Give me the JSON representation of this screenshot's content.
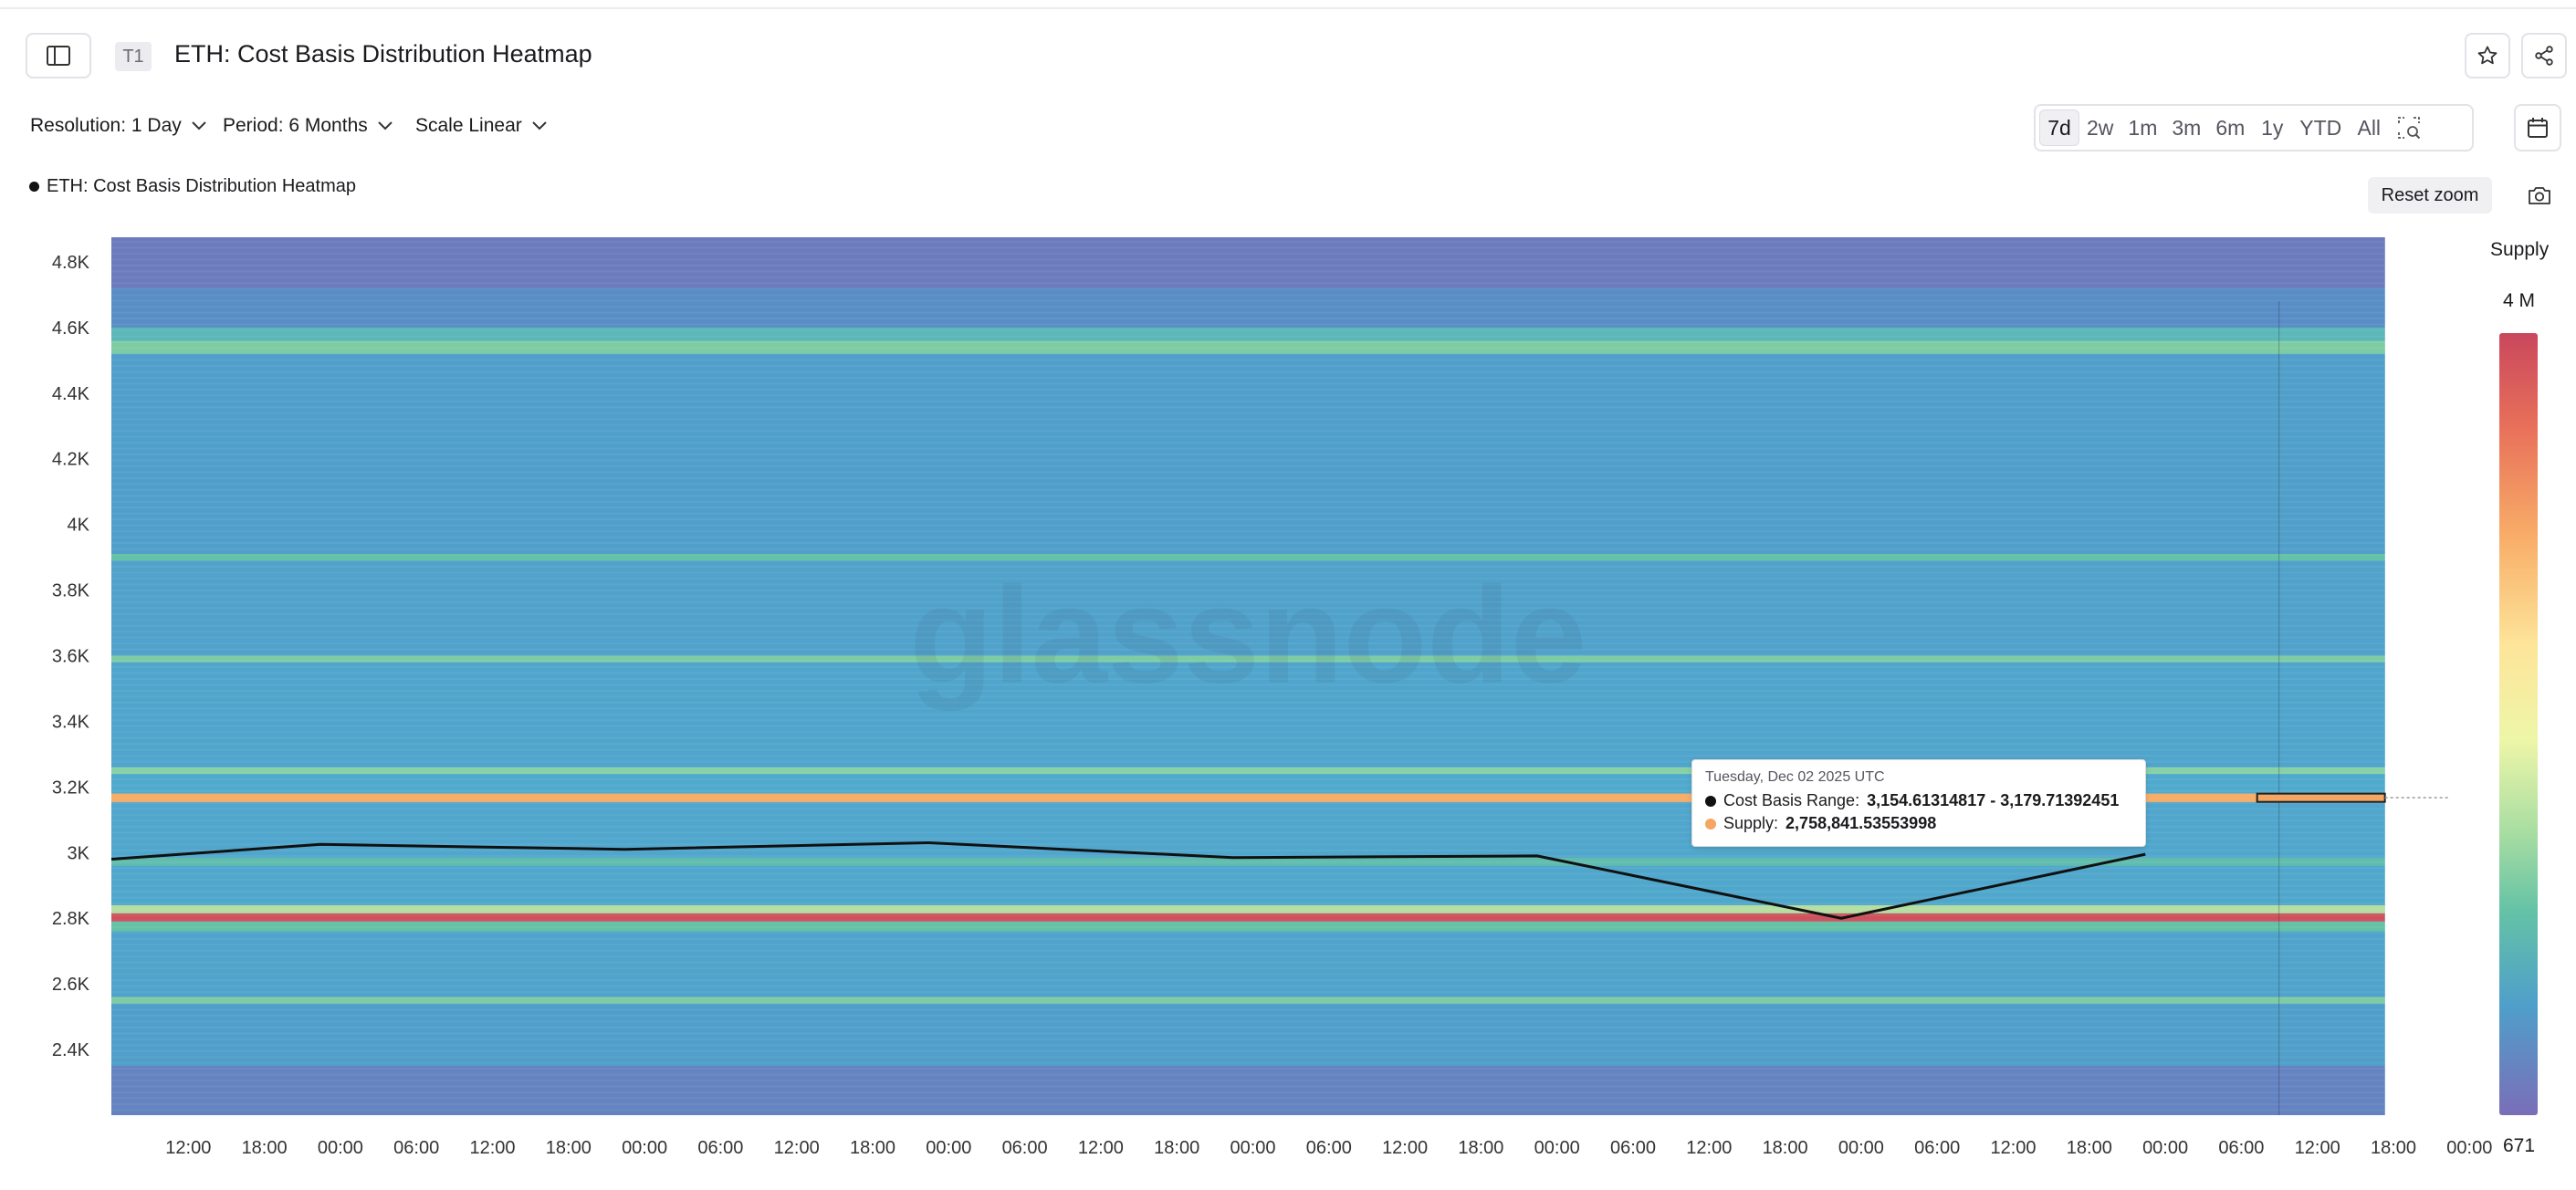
{
  "header": {
    "badge": "T1",
    "title": "ETH: Cost Basis Distribution Heatmap"
  },
  "controls": {
    "resolution": "Resolution: 1 Day",
    "period": "Period: 6 Months",
    "scale": "Scale Linear"
  },
  "timeframes": [
    "7d",
    "2w",
    "1m",
    "3m",
    "6m",
    "1y",
    "YTD",
    "All"
  ],
  "active_timeframe": "7d",
  "legend_label": "ETH: Cost Basis Distribution Heatmap",
  "reset_zoom": "Reset zoom",
  "watermark": "glassnode",
  "colorbar": {
    "title": "Supply",
    "max_label": "4 M",
    "min_label": "671"
  },
  "tooltip": {
    "date": "Tuesday, Dec 02 2025 UTC",
    "range_label": "Cost Basis Range:",
    "range_value": "3,154.61314817 - 3,179.71392451",
    "supply_label": "Supply:",
    "supply_value": "2,758,841.53553998"
  },
  "colors": {
    "price_line": "#111111",
    "highlight": "#f4a662",
    "range_dot": "#111111",
    "supply_dot": "#f4a662"
  },
  "chart_data": {
    "type": "heatmap",
    "title": "ETH: Cost Basis Distribution Heatmap",
    "x_ticks": [
      "12:00",
      "18:00",
      "00:00",
      "06:00",
      "12:00",
      "18:00",
      "00:00",
      "06:00",
      "12:00",
      "18:00",
      "00:00",
      "06:00",
      "12:00",
      "18:00",
      "00:00",
      "06:00",
      "12:00",
      "18:00",
      "00:00",
      "06:00",
      "12:00",
      "18:00",
      "00:00",
      "06:00",
      "12:00",
      "18:00",
      "00:00",
      "06:00",
      "12:00",
      "18:00",
      "00:00"
    ],
    "x_tick_index": [
      1,
      2,
      3,
      4,
      5,
      6,
      7,
      8,
      9,
      10,
      11,
      12,
      13,
      14,
      15,
      16,
      17,
      18,
      19,
      20,
      21,
      22,
      23,
      24,
      25,
      26,
      27,
      28,
      29,
      30,
      31
    ],
    "x_range_ticks": [
      0,
      31.9
    ],
    "heat_end_index": 29.9,
    "y_ticks": [
      2400,
      2600,
      2800,
      3000,
      3200,
      3400,
      3600,
      3800,
      4000,
      4200,
      4400,
      4600,
      4800
    ],
    "y_tick_labels": [
      "2.4K",
      "2.6K",
      "2.8K",
      "3K",
      "3.2K",
      "3.4K",
      "3.6K",
      "3.8K",
      "4K",
      "4.2K",
      "4.4K",
      "4.6K",
      "4.8K"
    ],
    "ylim": [
      2200,
      4875
    ],
    "price_line": {
      "x": [
        0,
        2.75,
        6.75,
        10.75,
        14.75,
        18.75,
        22.75,
        26.75
      ],
      "y": [
        2980,
        3025,
        3010,
        3030,
        2985,
        2990,
        2800,
        2995
      ]
    },
    "bands": [
      {
        "low": 2200,
        "high": 2350,
        "supply": 0.08
      },
      {
        "low": 2350,
        "high": 2540,
        "supply": 0.22
      },
      {
        "low": 2540,
        "high": 2560,
        "supply": 0.5
      },
      {
        "low": 2560,
        "high": 2760,
        "supply": 0.25
      },
      {
        "low": 2760,
        "high": 2790,
        "supply": 0.45
      },
      {
        "low": 2790,
        "high": 2815,
        "supply": 0.98
      },
      {
        "low": 2815,
        "high": 2840,
        "supply": 0.6
      },
      {
        "low": 2840,
        "high": 2960,
        "supply": 0.28
      },
      {
        "low": 2960,
        "high": 2985,
        "supply": 0.42
      },
      {
        "low": 2985,
        "high": 3150,
        "supply": 0.27
      },
      {
        "low": 3154.61,
        "high": 3179.71,
        "supply": 0.72
      },
      {
        "low": 3180,
        "high": 3240,
        "supply": 0.3
      },
      {
        "low": 3240,
        "high": 3260,
        "supply": 0.52
      },
      {
        "low": 3260,
        "high": 3580,
        "supply": 0.26
      },
      {
        "low": 3580,
        "high": 3600,
        "supply": 0.5
      },
      {
        "low": 3600,
        "high": 3890,
        "supply": 0.24
      },
      {
        "low": 3890,
        "high": 3910,
        "supply": 0.45
      },
      {
        "low": 3910,
        "high": 4520,
        "supply": 0.22
      },
      {
        "low": 4520,
        "high": 4560,
        "supply": 0.5
      },
      {
        "low": 4560,
        "high": 4600,
        "supply": 0.38
      },
      {
        "low": 4600,
        "high": 4720,
        "supply": 0.12
      },
      {
        "low": 4720,
        "high": 4875,
        "supply": 0.05
      }
    ],
    "supply_range": [
      671,
      4000000
    ],
    "tooltip_point": {
      "x_index": 29.9,
      "low": 3154.61314817,
      "high": 3179.71392451,
      "supply": 2758841.53553998
    }
  }
}
